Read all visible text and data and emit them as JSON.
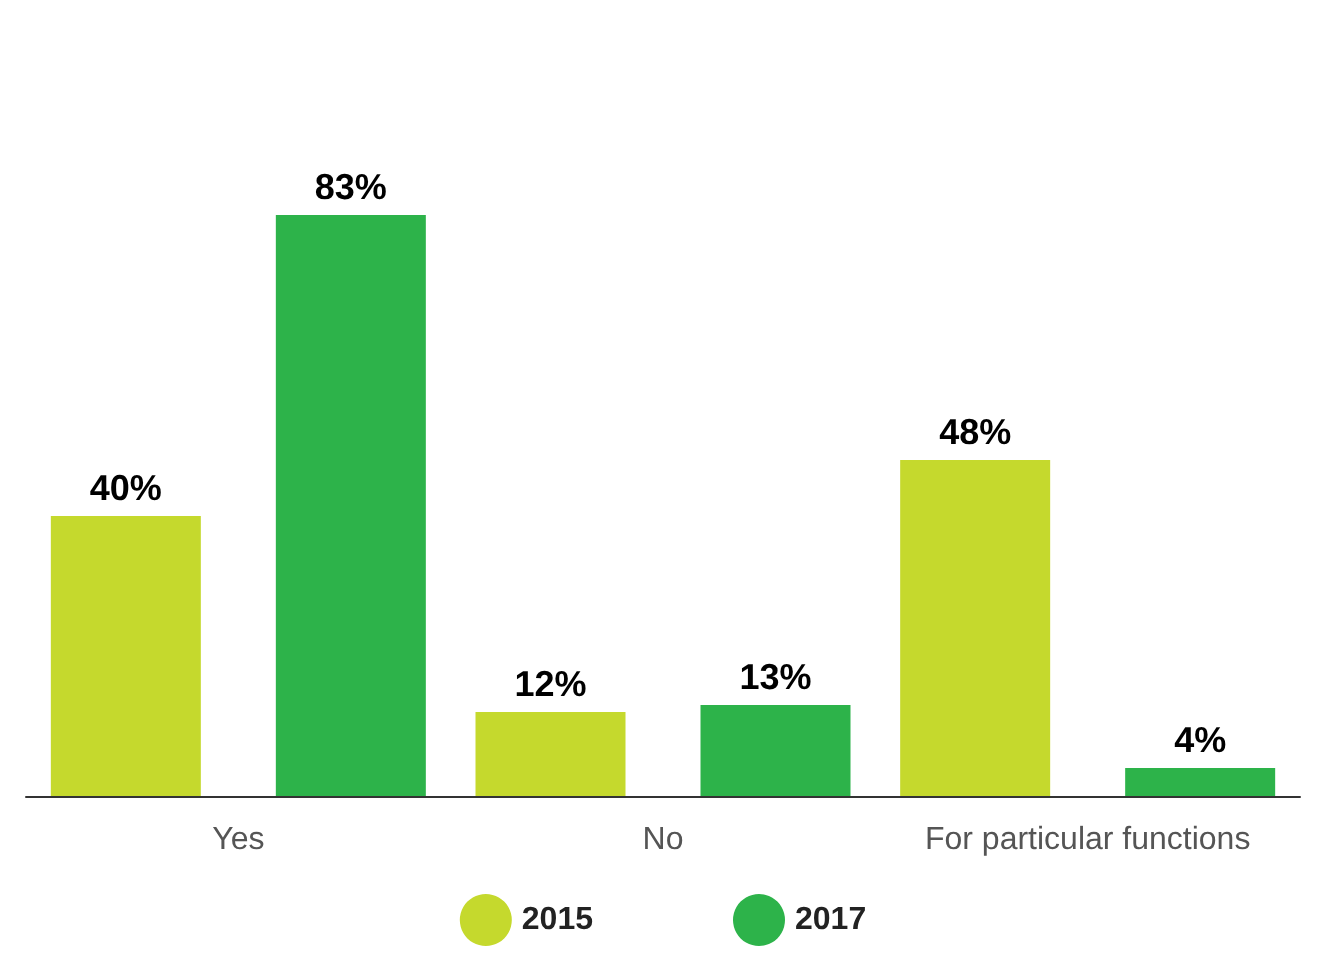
{
  "chart_data": {
    "type": "bar",
    "categories": [
      "Yes",
      "No",
      "For particular functions"
    ],
    "series": [
      {
        "name": "2015",
        "color": "#c5d92d",
        "values": [
          40,
          12,
          48
        ],
        "value_labels": [
          "40%",
          "12%",
          "48%"
        ]
      },
      {
        "name": "2017",
        "color": "#2db34a",
        "values": [
          83,
          13,
          4
        ],
        "value_labels": [
          "83%",
          "13%",
          "4%"
        ]
      }
    ],
    "legend": "bottom",
    "grid": false
  }
}
